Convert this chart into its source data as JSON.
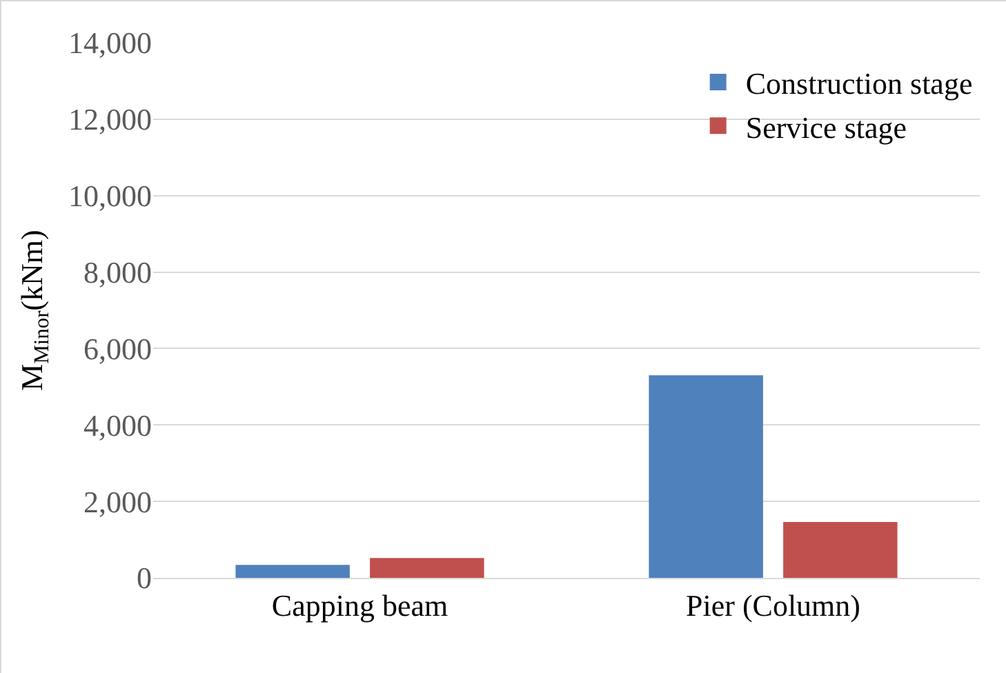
{
  "chart_data": {
    "type": "bar",
    "ylabel": "M$_{Minor}$(kNm)",
    "categories": [
      "Capping beam",
      "Pier (Column)"
    ],
    "series": [
      {
        "name": "Construction stage",
        "color": "#4f81bd",
        "values": [
          340,
          5300
        ]
      },
      {
        "name": "Service stage",
        "color": "#c0504d",
        "values": [
          520,
          1460
        ]
      }
    ],
    "ylim": [
      0,
      14000
    ],
    "yticks": [
      {
        "value": 0,
        "label": "0"
      },
      {
        "value": 2000,
        "label": "2,000"
      },
      {
        "value": 4000,
        "label": "4,000"
      },
      {
        "value": 6000,
        "label": "6,000"
      },
      {
        "value": 8000,
        "label": "8,000"
      },
      {
        "value": 10000,
        "label": "10,000"
      },
      {
        "value": 12000,
        "label": "12,000"
      },
      {
        "value": 14000,
        "label": "14,000"
      }
    ],
    "grid": "y",
    "legend": "top right"
  }
}
